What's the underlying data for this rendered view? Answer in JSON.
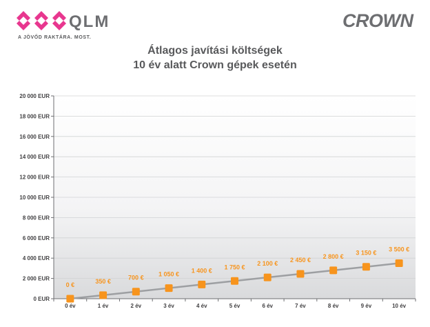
{
  "branding": {
    "left_logo_text": "QLM",
    "left_tagline": "A JÖVŐD RAKTÁRA. MOST.",
    "right_logo_text": "CROWN",
    "accent_color": "#e8378f"
  },
  "chart_data": {
    "type": "line",
    "title_line1": "Átlagos javítási költségek",
    "title_line2": "10 év alatt Crown gépek esetén",
    "categories": [
      "0 év",
      "1 év",
      "2 év",
      "3 év",
      "4 év",
      "5 év",
      "6 év",
      "7 év",
      "8 év",
      "9 év",
      "10 év"
    ],
    "values": [
      0,
      350,
      700,
      1050,
      1400,
      1750,
      2100,
      2450,
      2800,
      3150,
      3500
    ],
    "data_labels": [
      "0 €",
      "350 €",
      "700 €",
      "1 050 €",
      "1 400 €",
      "1 750 €",
      "2 100 €",
      "2 450 €",
      "2 800 €",
      "3 150 €",
      "3 500 €"
    ],
    "y_ticks": [
      0,
      2000,
      4000,
      6000,
      8000,
      10000,
      12000,
      14000,
      16000,
      18000,
      20000
    ],
    "y_tick_labels": [
      "0 EUR",
      "2 000 EUR",
      "4 000 EUR",
      "6 000 EUR",
      "8 000 EUR",
      "10 000 EUR",
      "12 000 EUR",
      "14 000 EUR",
      "16 000 EUR",
      "18 000 EUR",
      "20 000 EUR"
    ],
    "ylim": [
      0,
      20000
    ],
    "grid": true,
    "legend": "none",
    "line_color": "#9d9fa2",
    "marker_color": "#f7941d",
    "label_color": "#f7941d"
  }
}
